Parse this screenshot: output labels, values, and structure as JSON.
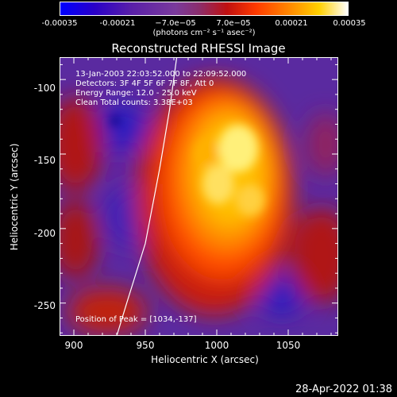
{
  "colorbar": {
    "ticks": [
      "-0.00035",
      "-0.00021",
      "−7.0e−05",
      "7.0e−05",
      "0.00021",
      "0.00035"
    ],
    "unit": "(photons cm⁻² s⁻¹ asec⁻²)"
  },
  "title": "Reconstructed RHESSI Image",
  "info": {
    "time": "13-Jan-2003 22:03:52.000 to 22:09:52.000",
    "detectors": "Detectors: 3F 4F 5F 6F 7F 8F, Att 0",
    "energy": "Energy Range: 12.0 - 25.0 keV",
    "method": "Clean      Total counts: 3.38E+03",
    "peak": "Position of Peak = [1034,-137]"
  },
  "chart_data": {
    "type": "heatmap",
    "title": "Reconstructed RHESSI Image",
    "xlabel": "Heliocentric X (arcsec)",
    "ylabel": "Heliocentric Y (arcsec)",
    "xlim": [
      890,
      1085
    ],
    "ylim": [
      -272,
      -85
    ],
    "xticks": [
      "900",
      "950",
      "1000",
      "1050"
    ],
    "yticks": [
      "-100",
      "-150",
      "-200",
      "-250"
    ],
    "clim": [
      -0.00035,
      0.00035
    ],
    "peak": [
      1034,
      -137
    ],
    "limb": [
      [
        972,
        -85
      ],
      [
        967,
        -120
      ],
      [
        960,
        -160
      ],
      [
        950,
        -210
      ],
      [
        937,
        -250
      ],
      [
        930,
        -272
      ]
    ],
    "colors": {
      "low": "#0000ff",
      "mid": "#8a2e6e",
      "high": "#ffffff"
    }
  },
  "timestamp": "28-Apr-2022 01:38"
}
